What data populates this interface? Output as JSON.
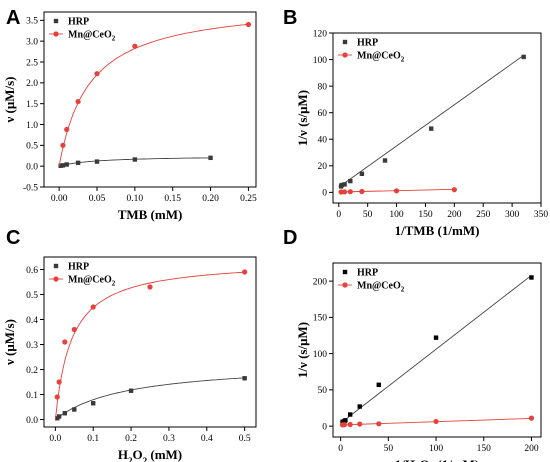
{
  "chart_data": [
    {
      "type": "scatter",
      "panel": "A",
      "xlabel": "TMB (mM)",
      "ylabel": "ν (μM/s)",
      "xlim": [
        -0.02,
        0.26
      ],
      "ylim": [
        -0.5,
        3.7
      ],
      "xticks": [
        "0.00",
        "0.05",
        "0.10",
        "0.15",
        "0.20",
        "0.25"
      ],
      "yticks": [
        "-0.5",
        "0.0",
        "0.5",
        "1.0",
        "1.5",
        "2.0",
        "2.5",
        "3.0",
        "3.5"
      ],
      "legend_position": "top-left",
      "fit": "michaelis-menten",
      "series": [
        {
          "name": "HRP",
          "color": "#3a3a3a",
          "marker": "square",
          "vmax": 0.25,
          "km": 0.05,
          "x": [
            0.002,
            0.005,
            0.01,
            0.025,
            0.05,
            0.1,
            0.2
          ],
          "y": [
            0.01,
            0.02,
            0.04,
            0.08,
            0.11,
            0.16,
            0.2
          ]
        },
        {
          "name": "Mn@CeO2",
          "color": "#e8403a",
          "marker": "circle",
          "vmax": 3.95,
          "km": 0.04,
          "x": [
            0.005,
            0.01,
            0.025,
            0.05,
            0.1,
            0.25
          ],
          "y": [
            0.5,
            0.88,
            1.55,
            2.22,
            2.88,
            3.4
          ]
        }
      ]
    },
    {
      "type": "scatter",
      "panel": "B",
      "xlabel": "1/TMB (1/mM)",
      "ylabel": "1/ν (s/μM)",
      "xlim": [
        -10,
        350
      ],
      "ylim": [
        -8,
        120
      ],
      "xticks": [
        "0",
        "50",
        "100",
        "150",
        "200",
        "250",
        "300",
        "350"
      ],
      "yticks": [
        "0",
        "20",
        "40",
        "60",
        "80",
        "100",
        "120"
      ],
      "legend_position": "top-left",
      "fit": "linear",
      "series": [
        {
          "name": "HRP",
          "color": "#3a3a3a",
          "marker": "square",
          "slope": 0.31,
          "intercept": 4.0,
          "x": [
            4,
            5,
            10,
            20,
            40,
            80,
            160,
            320
          ],
          "y": [
            4.5,
            5.5,
            6,
            8.5,
            14,
            24,
            48,
            102
          ]
        },
        {
          "name": "Mn@CeO2",
          "color": "#e8403a",
          "marker": "circle",
          "slope": 0.0103,
          "intercept": 0.25,
          "x": [
            4,
            10,
            20,
            40,
            100,
            200
          ],
          "y": [
            0.3,
            0.35,
            0.5,
            0.65,
            1.15,
            2.0
          ]
        }
      ]
    },
    {
      "type": "scatter",
      "panel": "C",
      "xlabel": "H₂O₂ (mM)",
      "ylabel": "ν (μM/s)",
      "xlim": [
        -0.03,
        0.53
      ],
      "ylim": [
        -0.03,
        0.65
      ],
      "xticks": [
        "0.0",
        "0.1",
        "0.2",
        "0.3",
        "0.4",
        "0.5"
      ],
      "yticks": [
        "0.0",
        "0.1",
        "0.2",
        "0.3",
        "0.4",
        "0.5",
        "0.6"
      ],
      "legend_position": "top-left",
      "fit": "michaelis-menten",
      "series": [
        {
          "name": "HRP",
          "color": "#3a3a3a",
          "marker": "square",
          "vmax": 0.23,
          "km": 0.19,
          "x": [
            0.005,
            0.01,
            0.025,
            0.05,
            0.1,
            0.2,
            0.5
          ],
          "y": [
            0.005,
            0.012,
            0.025,
            0.04,
            0.065,
            0.115,
            0.165
          ]
        },
        {
          "name": "Mn@CeO2",
          "color": "#e8403a",
          "marker": "circle",
          "vmax": 0.64,
          "km": 0.043,
          "x": [
            0.005,
            0.01,
            0.025,
            0.05,
            0.1,
            0.25,
            0.5
          ],
          "y": [
            0.09,
            0.15,
            0.31,
            0.36,
            0.45,
            0.53,
            0.59
          ]
        }
      ]
    },
    {
      "type": "scatter",
      "panel": "D",
      "xlabel": "1/H₂O₂ (1/mM)",
      "ylabel": "1/ν (s/μM)",
      "xlim": [
        -8,
        210
      ],
      "ylim": [
        -15,
        225
      ],
      "xticks": [
        "0",
        "50",
        "100",
        "150",
        "200"
      ],
      "yticks": [
        "0",
        "50",
        "100",
        "150",
        "200"
      ],
      "legend_position": "top-left",
      "fit": "linear",
      "series": [
        {
          "name": "HRP",
          "color": "#000000",
          "marker": "square",
          "slope": 1.02,
          "intercept": 4.0,
          "x": [
            2,
            4,
            5,
            10,
            20,
            40,
            100,
            200
          ],
          "y": [
            6,
            7,
            8,
            16,
            27,
            57,
            122,
            205
          ]
        },
        {
          "name": "Mn@CeO2",
          "color": "#e8403a",
          "marker": "circle",
          "slope": 0.045,
          "intercept": 1.7,
          "x": [
            2,
            4,
            10,
            20,
            40,
            100,
            200
          ],
          "y": [
            1.7,
            2.0,
            2.2,
            2.8,
            3.2,
            6.5,
            11.0
          ]
        }
      ]
    }
  ]
}
